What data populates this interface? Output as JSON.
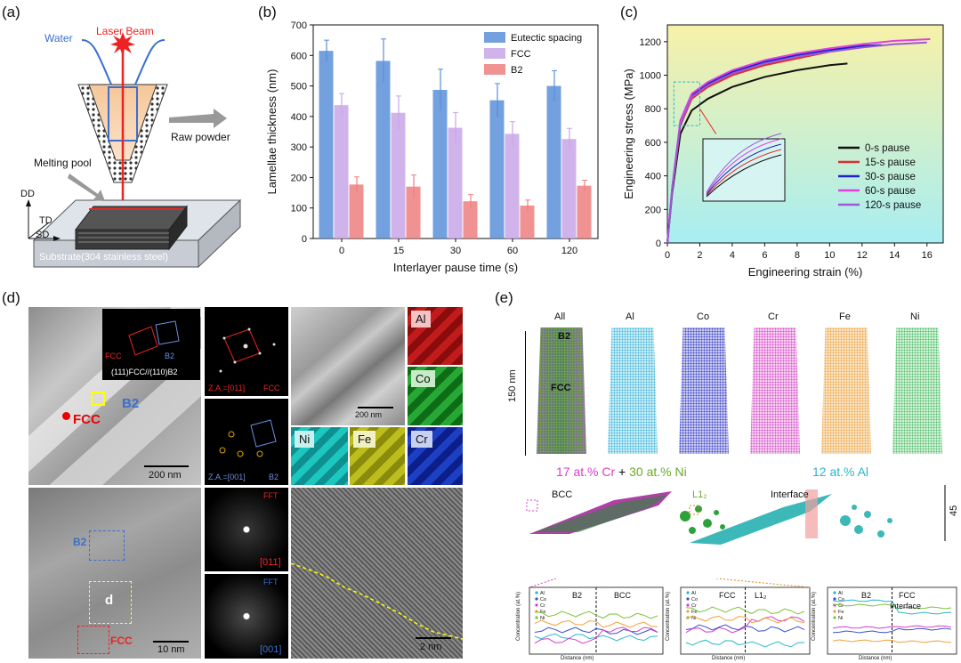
{
  "panel_a": {
    "letter": "(a)",
    "laser_beam": "Laser Beam",
    "water": "Water",
    "raw_powder": "Raw powder",
    "melting_pool": "Melting pool",
    "axis_dd": "DD",
    "axis_td": "TD",
    "axis_sd": "SD",
    "substrate": "Substrate(304 stainless steel)"
  },
  "panel_b": {
    "letter": "(b)",
    "chart_data": {
      "type": "bar",
      "categories": [
        "0",
        "15",
        "30",
        "60",
        "120"
      ],
      "series": [
        {
          "name": "Eutectic spacing",
          "values": [
            615,
            582,
            487,
            453,
            500
          ],
          "errors": [
            35,
            72,
            68,
            55,
            50
          ],
          "color": "#5b8fd8"
        },
        {
          "name": "FCC",
          "values": [
            437,
            412,
            363,
            343,
            326
          ],
          "errors": [
            38,
            55,
            50,
            40,
            35
          ],
          "color": "#c9a6e8"
        },
        {
          "name": "B2",
          "values": [
            177,
            170,
            122,
            108,
            173
          ],
          "errors": [
            25,
            38,
            22,
            18,
            18
          ],
          "color": "#ef7f7f"
        }
      ],
      "xlabel": "Interlayer pause time (s)",
      "ylabel": "Lamellae thickness (nm)",
      "ylim": [
        0,
        700
      ],
      "yticks": [
        "0",
        "100",
        "200",
        "300",
        "400",
        "500",
        "600",
        "700"
      ],
      "legend": "top-right"
    }
  },
  "panel_c": {
    "letter": "(c)",
    "chart_data": {
      "type": "line",
      "xlabel": "Engineering strain (%)",
      "ylabel": "Engineering stress (MPa)",
      "xlim": [
        0,
        17
      ],
      "ylim": [
        0,
        1300
      ],
      "xticks": [
        "0",
        "2",
        "4",
        "6",
        "8",
        "10",
        "12",
        "14",
        "16"
      ],
      "yticks": [
        "0",
        "200",
        "400",
        "600",
        "800",
        "1000",
        "1200"
      ],
      "legend": "right",
      "series": [
        {
          "name": "0-s pause",
          "color": "#111111",
          "x": [
            0,
            0.3,
            0.8,
            1.5,
            2.5,
            4,
            6,
            8,
            10,
            11.1
          ],
          "y": [
            0,
            300,
            650,
            790,
            860,
            930,
            990,
            1030,
            1060,
            1070
          ]
        },
        {
          "name": "15-s pause",
          "color": "#e02b2b",
          "x": [
            0,
            0.3,
            0.8,
            1.5,
            2.5,
            4,
            6,
            8,
            10,
            11.5
          ],
          "y": [
            0,
            320,
            700,
            860,
            930,
            1000,
            1060,
            1100,
            1140,
            1160
          ]
        },
        {
          "name": "30-s pause",
          "color": "#1a24c8",
          "x": [
            0,
            0.3,
            0.8,
            1.5,
            2.5,
            4,
            6,
            8,
            10,
            12,
            13.2
          ],
          "y": [
            0,
            330,
            720,
            880,
            950,
            1020,
            1080,
            1120,
            1150,
            1175,
            1180
          ]
        },
        {
          "name": "60-s pause",
          "color": "#e23ee0",
          "x": [
            0,
            0.3,
            0.8,
            1.5,
            2.5,
            4,
            6,
            8,
            10,
            12,
            14,
            16.2
          ],
          "y": [
            0,
            330,
            730,
            890,
            960,
            1030,
            1090,
            1130,
            1160,
            1185,
            1205,
            1215
          ]
        },
        {
          "name": "120-s pause",
          "color": "#9b59d6",
          "x": [
            0,
            0.3,
            0.8,
            1.5,
            2.5,
            4,
            6,
            8,
            10,
            12,
            14,
            16
          ],
          "y": [
            0,
            320,
            710,
            870,
            940,
            1010,
            1070,
            1110,
            1140,
            1165,
            1185,
            1195
          ]
        }
      ]
    }
  },
  "panel_d": {
    "letter": "(d)",
    "fcc_label": "FCC",
    "b2_label": "B2",
    "scale_200": "200 nm",
    "scale_200b": "200 nm",
    "scale_10": "10 nm",
    "scale_2": "2 nm",
    "za_fcc": "Z.A.=[011]",
    "fcc_dot": "FCC",
    "za_b2": "Z.A.=[001]",
    "b2_tri": "B2",
    "fft1": "FFT",
    "fft1_dir": "[011]",
    "fft2": "FFT",
    "fft2_dir": "[001]",
    "d_box": "d",
    "fcc_box": "FCC",
    "b2_box": "B2",
    "map_al": "Al",
    "map_co": "Co",
    "map_ni": "Ni",
    "map_fe": "Fe",
    "map_cr": "Cr",
    "inset_fcc": "FCC",
    "inset_b2": "B2",
    "inset_rel": "(111)FCC//(110)B2"
  },
  "panel_e": {
    "letter": "(e)",
    "cols": [
      "All",
      "Al",
      "Co",
      "Cr",
      "Fe",
      "Ni"
    ],
    "b2": "B2",
    "fcc": "FCC",
    "scale_150": "150 nm",
    "scale_45": "45 nm",
    "iso_cr": "17 at.% Cr",
    "plus": " + ",
    "iso_ni": "30 at.% Ni",
    "iso_al": "12 at.% Al",
    "bcc": "BCC",
    "l12": "L1₂",
    "interface": "Interface",
    "prox1_left": "B2",
    "prox1_right": "BCC",
    "prox2_left": "FCC",
    "prox2_right": "L1₂",
    "prox3_left": "B2",
    "prox3_right": "FCC",
    "prox3_interface": "Interface",
    "distance": "Distance (nm)",
    "concentration": "Concentration (at.%)",
    "legend_elems": [
      "Al",
      "Co",
      "Cr",
      "Fe",
      "Ni"
    ]
  }
}
